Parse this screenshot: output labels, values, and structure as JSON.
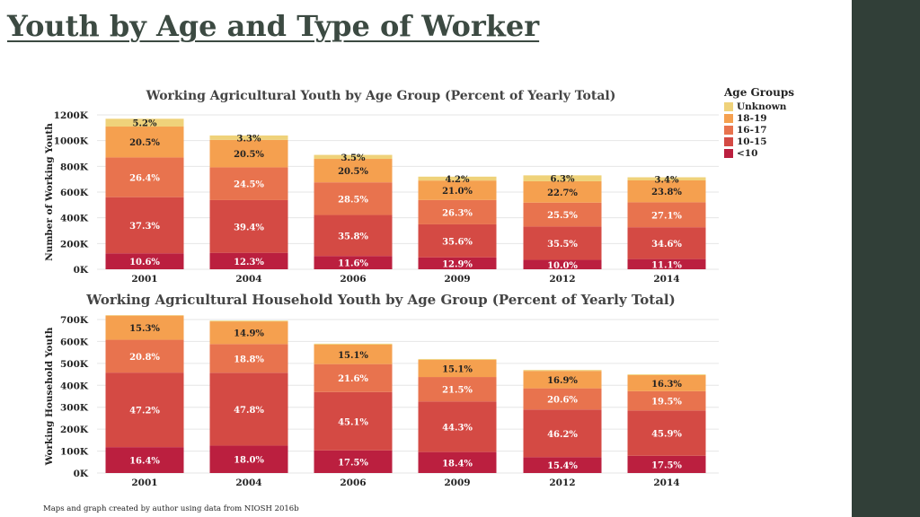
{
  "slide": {
    "title": "Youth by Age and Type of Worker",
    "footer": "Maps and graph created by author using data from NIOSH 2016b"
  },
  "legend": {
    "title": "Age Groups",
    "items": [
      {
        "label": "Unknown",
        "color": "#efd27a"
      },
      {
        "label": "18-19",
        "color": "#f5a04f"
      },
      {
        "label": "16-17",
        "color": "#e8734e"
      },
      {
        "label": "10-15",
        "color": "#d44a44"
      },
      {
        "label": "<10",
        "color": "#bb1f3f"
      }
    ]
  },
  "chart_data": [
    {
      "type": "bar",
      "stacked": true,
      "title": "Working Agricultural Youth by Age Group (Percent of Yearly Total)",
      "ylabel": "Number of Working Youth",
      "xlabel": "",
      "ylim": [
        0,
        1200000
      ],
      "yticks": [
        0,
        200000,
        400000,
        600000,
        800000,
        1000000,
        1200000
      ],
      "ytick_labels": [
        "0K",
        "200K",
        "400K",
        "600K",
        "800K",
        "1000K",
        "1200K"
      ],
      "grid": true,
      "categories": [
        "2001",
        "2004",
        "2006",
        "2009",
        "2012",
        "2014"
      ],
      "totals": [
        1170000,
        1040000,
        890000,
        720000,
        730000,
        715000
      ],
      "series": [
        {
          "name": "<10",
          "color": "#bb1f3f",
          "percent": [
            10.6,
            12.3,
            11.6,
            12.9,
            10.0,
            11.1
          ],
          "labels": [
            "10.6%",
            "12.3%",
            "11.6%",
            "12.9%",
            "10.0%",
            "11.1%"
          ]
        },
        {
          "name": "10-15",
          "color": "#d44a44",
          "percent": [
            37.3,
            39.4,
            35.8,
            35.6,
            35.5,
            34.6
          ],
          "labels": [
            "37.3%",
            "39.4%",
            "35.8%",
            "35.6%",
            "35.5%",
            "34.6%"
          ]
        },
        {
          "name": "16-17",
          "color": "#e8734e",
          "percent": [
            26.4,
            24.5,
            28.5,
            26.3,
            25.5,
            27.1
          ],
          "labels": [
            "26.4%",
            "24.5%",
            "28.5%",
            "26.3%",
            "25.5%",
            "27.1%"
          ]
        },
        {
          "name": "18-19",
          "color": "#f5a04f",
          "percent": [
            20.5,
            20.5,
            20.5,
            21.0,
            22.7,
            23.8
          ],
          "labels": [
            "20.5%",
            "20.5%",
            "20.5%",
            "21.0%",
            "22.7%",
            "23.8%"
          ]
        },
        {
          "name": "Unknown",
          "color": "#efd27a",
          "percent": [
            5.2,
            3.3,
            3.5,
            4.2,
            6.3,
            3.4
          ],
          "labels": [
            "5.2%",
            "3.3%",
            "3.5%",
            "4.2%",
            "6.3%",
            "3.4%"
          ]
        }
      ]
    },
    {
      "type": "bar",
      "stacked": true,
      "title": "Working Agricultural Household Youth by Age Group (Percent of Yearly Total)",
      "ylabel": "Working Household Youth",
      "xlabel": "",
      "ylim": [
        0,
        700000
      ],
      "yticks": [
        0,
        100000,
        200000,
        300000,
        400000,
        500000,
        600000,
        700000
      ],
      "ytick_labels": [
        "0K",
        "100K",
        "200K",
        "300K",
        "400K",
        "500K",
        "600K",
        "700K"
      ],
      "grid": true,
      "categories": [
        "2001",
        "2004",
        "2006",
        "2009",
        "2012",
        "2014"
      ],
      "totals": [
        720000,
        695000,
        590000,
        520000,
        470000,
        450000
      ],
      "series": [
        {
          "name": "<10",
          "color": "#bb1f3f",
          "percent": [
            16.4,
            18.0,
            17.5,
            18.4,
            15.4,
            17.5
          ],
          "labels": [
            "16.4%",
            "18.0%",
            "17.5%",
            "18.4%",
            "15.4%",
            "17.5%"
          ]
        },
        {
          "name": "10-15",
          "color": "#d44a44",
          "percent": [
            47.2,
            47.8,
            45.1,
            44.3,
            46.2,
            45.9
          ],
          "labels": [
            "47.2%",
            "47.8%",
            "45.1%",
            "44.3%",
            "46.2%",
            "45.9%"
          ]
        },
        {
          "name": "16-17",
          "color": "#e8734e",
          "percent": [
            20.8,
            18.8,
            21.6,
            21.5,
            20.6,
            19.5
          ],
          "labels": [
            "20.8%",
            "18.8%",
            "21.6%",
            "21.5%",
            "20.6%",
            "19.5%"
          ]
        },
        {
          "name": "18-19",
          "color": "#f5a04f",
          "percent": [
            15.3,
            14.9,
            15.1,
            15.1,
            16.9,
            16.3
          ],
          "labels": [
            "15.3%",
            "14.9%",
            "15.1%",
            "15.1%",
            "16.9%",
            "16.3%"
          ]
        },
        {
          "name": "Unknown",
          "color": "#efd27a",
          "percent": [
            0.3,
            0.5,
            0.7,
            0.7,
            0.9,
            0.8
          ],
          "labels": [
            "",
            "",
            "",
            "",
            "",
            ""
          ]
        }
      ]
    }
  ]
}
